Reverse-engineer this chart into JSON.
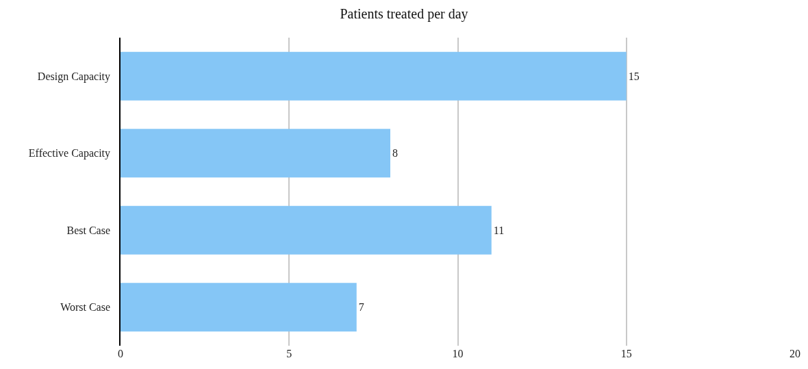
{
  "chart_data": {
    "type": "bar",
    "orientation": "horizontal",
    "title": "Patients treated per day",
    "categories": [
      "Design Capacity",
      "Effective Capacity",
      "Best Case",
      "Worst Case"
    ],
    "values": [
      15,
      8,
      11,
      7
    ],
    "color": "#85c6f6",
    "xlim": [
      0,
      20
    ],
    "xticks": [
      0,
      5,
      10,
      15,
      20
    ],
    "grid": "x",
    "data_labels": true
  }
}
